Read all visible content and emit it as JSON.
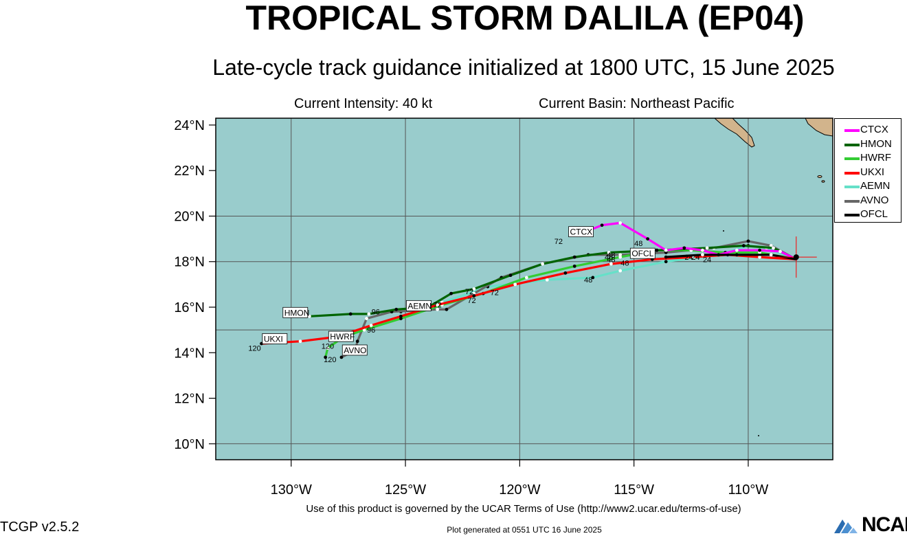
{
  "title": "TROPICAL STORM DALILA (EP04)",
  "subtitle": "Late-cycle track guidance initialized at 1800 UTC, 15 June 2025",
  "info": {
    "intensity": "Current Intensity: 40 kt",
    "basin": "Current Basin: Northeast Pacific"
  },
  "map": {
    "lon_range": [
      -133.3,
      -106.3
    ],
    "lat_range": [
      9.3,
      24.3
    ],
    "lat_ticks": [
      {
        "value": 24,
        "label": "24°N"
      },
      {
        "value": 22,
        "label": "22°N"
      },
      {
        "value": 20,
        "label": "20°N"
      },
      {
        "value": 18,
        "label": "18°N"
      },
      {
        "value": 16,
        "label": "16°N"
      },
      {
        "value": 14,
        "label": "14°N"
      },
      {
        "value": 12,
        "label": "12°N"
      },
      {
        "value": 10,
        "label": "10°N"
      }
    ],
    "lon_ticks": [
      {
        "value": -130,
        "label": "130°W"
      },
      {
        "value": -125,
        "label": "125°W"
      },
      {
        "value": -120,
        "label": "120°W"
      },
      {
        "value": -115,
        "label": "115°W"
      },
      {
        "value": -110,
        "label": "110°W"
      }
    ],
    "grid_lines_lon": [
      -130,
      -125,
      -120,
      -115,
      -110
    ],
    "grid_lines_lat": [
      20,
      18,
      15,
      10
    ],
    "colors": {
      "ocean": "#99cccc",
      "land": "#d2b48c",
      "grid": "#555555"
    },
    "current_position": {
      "lon": -107.9,
      "lat": 18.2
    }
  },
  "chart_data": {
    "type": "track-map",
    "series": [
      {
        "name": "CTCX",
        "color": "#ff00ff",
        "points": [
          [
            -107.9,
            18.1
          ],
          [
            -108.6,
            18.45
          ],
          [
            -109.5,
            18.5
          ],
          [
            -110.5,
            18.5
          ],
          [
            -111.3,
            18.3
          ],
          [
            -112.0,
            18.5
          ],
          [
            -112.8,
            18.6
          ],
          [
            -113.6,
            18.5
          ],
          [
            -114.4,
            19.0
          ],
          [
            -115.6,
            19.7
          ],
          [
            -116.4,
            19.6
          ],
          [
            -117.4,
            19.2
          ]
        ],
        "tau_labels": [
          {
            "lon": -118.3,
            "lat": 18.9,
            "text": "72"
          },
          {
            "lon": -114.8,
            "lat": 18.8,
            "text": "48"
          }
        ]
      },
      {
        "name": "HMON",
        "color": "#006400",
        "points": [
          [
            -107.9,
            18.1
          ],
          [
            -108.9,
            18.6
          ],
          [
            -110.2,
            18.7
          ],
          [
            -111.8,
            18.6
          ],
          [
            -114.0,
            18.5
          ],
          [
            -116.1,
            18.4
          ],
          [
            -117.6,
            18.2
          ],
          [
            -119.0,
            17.9
          ],
          [
            -120.4,
            17.4
          ],
          [
            -122.0,
            16.8
          ],
          [
            -123.0,
            16.6
          ],
          [
            -124.0,
            16.0
          ],
          [
            -125.4,
            15.9
          ],
          [
            -126.6,
            15.7
          ],
          [
            -127.4,
            15.7
          ],
          [
            -129.2,
            15.6
          ]
        ],
        "tau_labels": [
          {
            "lon": -116.0,
            "lat": 18.3,
            "text": "48"
          },
          {
            "lon": -122.2,
            "lat": 16.7,
            "text": "72"
          },
          {
            "lon": -126.3,
            "lat": 15.8,
            "text": "96"
          }
        ]
      },
      {
        "name": "HWRF",
        "color": "#33cc33",
        "points": [
          [
            -107.9,
            18.1
          ],
          [
            -109.5,
            18.4
          ],
          [
            -111.0,
            18.4
          ],
          [
            -112.5,
            18.5
          ],
          [
            -114.0,
            18.5
          ],
          [
            -115.6,
            18.2
          ],
          [
            -117.6,
            17.8
          ],
          [
            -119.7,
            17.3
          ],
          [
            -121.6,
            16.6
          ],
          [
            -123.4,
            16.1
          ],
          [
            -125.2,
            15.5
          ],
          [
            -126.8,
            15.0
          ],
          [
            -127.7,
            14.7
          ],
          [
            -128.4,
            14.2
          ],
          [
            -128.5,
            13.8
          ]
        ],
        "tau_labels": [
          {
            "lon": -116.0,
            "lat": 18.1,
            "text": "48"
          },
          {
            "lon": -122.1,
            "lat": 16.3,
            "text": "72"
          },
          {
            "lon": -128.4,
            "lat": 14.3,
            "text": "120"
          }
        ]
      },
      {
        "name": "UKXI",
        "color": "#ff0000",
        "points": [
          [
            -107.9,
            18.1
          ],
          [
            -109.5,
            18.2
          ],
          [
            -110.9,
            18.3
          ],
          [
            -112.4,
            18.2
          ],
          [
            -114.2,
            18.1
          ],
          [
            -116.0,
            17.9
          ],
          [
            -118.0,
            17.5
          ],
          [
            -120.2,
            17.0
          ],
          [
            -122.0,
            16.5
          ],
          [
            -123.6,
            16.1
          ],
          [
            -125.2,
            15.6
          ],
          [
            -126.5,
            15.2
          ],
          [
            -128.0,
            14.7
          ],
          [
            -129.6,
            14.5
          ],
          [
            -131.3,
            14.4
          ]
        ],
        "tau_labels": [
          {
            "lon": -115.4,
            "lat": 17.95,
            "text": "48"
          },
          {
            "lon": -121.1,
            "lat": 16.65,
            "text": "72"
          },
          {
            "lon": -126.5,
            "lat": 15.0,
            "text": "96"
          },
          {
            "lon": -131.6,
            "lat": 14.2,
            "text": "120"
          }
        ]
      },
      {
        "name": "AEMN",
        "color": "#66e0c8",
        "points": [
          [
            -107.9,
            18.1
          ],
          [
            -109.2,
            18.6
          ],
          [
            -110.0,
            18.7
          ],
          [
            -111.3,
            18.3
          ],
          [
            -113.6,
            18.0
          ],
          [
            -115.6,
            17.6
          ],
          [
            -116.8,
            17.3
          ],
          [
            -118.8,
            17.2
          ],
          [
            -121.4,
            16.9
          ],
          [
            -123.4,
            16.2
          ],
          [
            -125.2,
            15.8
          ]
        ],
        "tau_labels": [
          {
            "lon": -112.3,
            "lat": 18.2,
            "text": "24"
          },
          {
            "lon": -117.0,
            "lat": 17.2,
            "text": "48"
          },
          {
            "lon": -123.6,
            "lat": 16.1,
            "text": "72"
          }
        ]
      },
      {
        "name": "AVNO",
        "color": "#666666",
        "points": [
          [
            -107.9,
            18.1
          ],
          [
            -109.0,
            18.7
          ],
          [
            -110.0,
            18.9
          ],
          [
            -111.5,
            18.6
          ],
          [
            -113.6,
            18.4
          ],
          [
            -115.6,
            18.3
          ],
          [
            -117.0,
            18.3
          ],
          [
            -119.0,
            17.9
          ],
          [
            -120.8,
            17.3
          ],
          [
            -122.0,
            16.6
          ],
          [
            -123.2,
            15.9
          ],
          [
            -123.6,
            15.9
          ],
          [
            -125.6,
            15.8
          ],
          [
            -126.7,
            15.5
          ],
          [
            -127.1,
            14.5
          ],
          [
            -127.2,
            14.1
          ],
          [
            -127.8,
            13.8
          ]
        ],
        "tau_labels": [
          {
            "lon": -112.6,
            "lat": 18.2,
            "text": "24"
          },
          {
            "lon": -116.1,
            "lat": 18.2,
            "text": "48"
          },
          {
            "lon": -128.3,
            "lat": 13.7,
            "text": "120"
          }
        ]
      },
      {
        "name": "OFCL",
        "color": "#000000",
        "points": [
          [
            -107.9,
            18.1
          ],
          [
            -109.0,
            18.3
          ],
          [
            -110.5,
            18.3
          ],
          [
            -112.0,
            18.3
          ],
          [
            -113.6,
            18.2
          ]
        ],
        "tau_labels": [
          {
            "lon": -111.8,
            "lat": 18.1,
            "text": "24"
          }
        ]
      }
    ],
    "model_labels": [
      {
        "text": "CTCX",
        "lon": -117.8,
        "lat": 19.3
      },
      {
        "text": "OFCL",
        "lon": -115.1,
        "lat": 18.35
      },
      {
        "text": "AEMN",
        "lon": -124.9,
        "lat": 16.05
      },
      {
        "text": "HMON",
        "lon": -130.3,
        "lat": 15.75
      },
      {
        "text": "UKXI",
        "lon": -131.2,
        "lat": 14.6
      },
      {
        "text": "HWRF",
        "lon": -128.3,
        "lat": 14.7
      },
      {
        "text": "AVNO",
        "lon": -127.7,
        "lat": 14.1
      }
    ]
  },
  "legend": {
    "items": [
      {
        "label": "CTCX",
        "color": "#ff00ff"
      },
      {
        "label": "HMON",
        "color": "#006400"
      },
      {
        "label": "HWRF",
        "color": "#33cc33"
      },
      {
        "label": "UKXI",
        "color": "#ff0000"
      },
      {
        "label": "AEMN",
        "color": "#66e0c8"
      },
      {
        "label": "AVNO",
        "color": "#666666"
      },
      {
        "label": "OFCL",
        "color": "#000000"
      }
    ]
  },
  "footer": {
    "terms": "Use of this product is governed by the UCAR Terms of Use (http://www2.ucar.edu/terms-of-use)",
    "version": "TCGP v2.5.2",
    "generated": "Plot generated at 0551 UTC   16 June 2025",
    "logo_text": "NCAR"
  }
}
